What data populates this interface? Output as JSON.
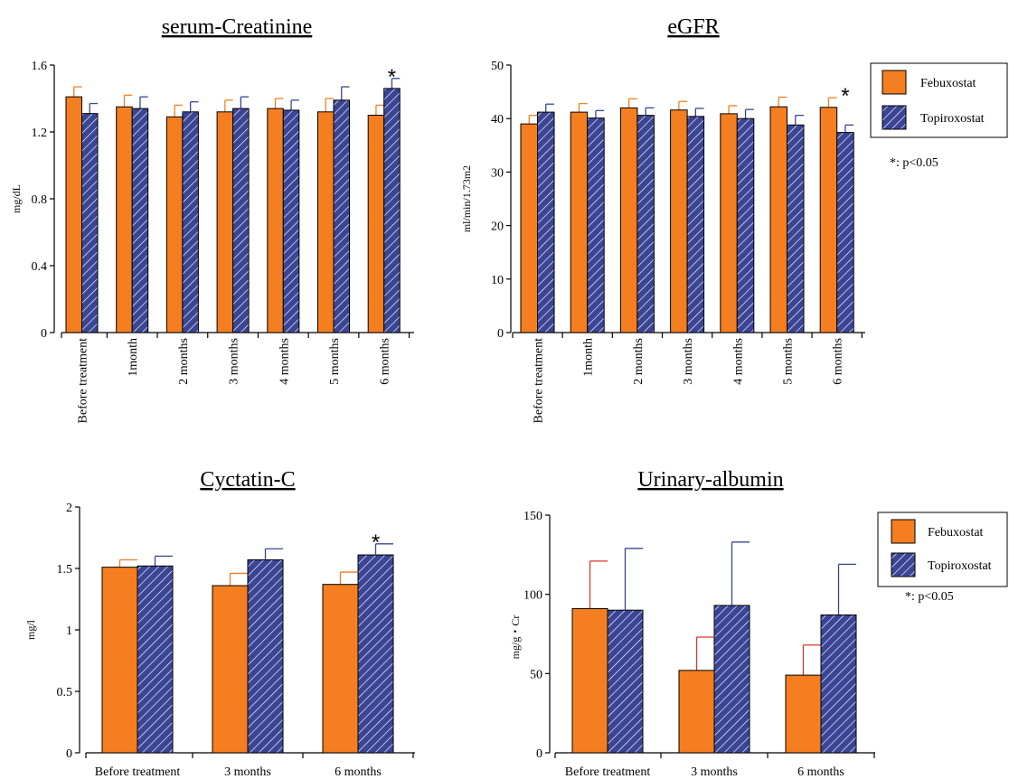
{
  "colors": {
    "febuxostat": "#F47E20",
    "topiroxostat": "#3A4595",
    "hatch": "#ffffff",
    "err_febuxostat_top": "#F47E20",
    "err_febuxostat_bottom": "#D9362B",
    "err_topiroxostat": "#3A4595"
  },
  "legend_top": {
    "items": [
      "Febuxostat",
      "Topiroxostat"
    ],
    "note": "*: p<0.05"
  },
  "legend_bottom": {
    "items": [
      "Febuxostat",
      "Topiroxostat"
    ],
    "note": "*: p<0.05"
  },
  "chart_data": [
    {
      "type": "bar",
      "title": "serum-Creatinine",
      "ylabel": "mg/dL",
      "ylim": [
        0,
        1.6
      ],
      "yticks": [
        "0",
        "0.4",
        "0.8",
        "1.2",
        "1.6"
      ],
      "categories": [
        "Before treatment",
        "1month",
        "2 months",
        "3 months",
        "4 months",
        "5 months",
        "6 months"
      ],
      "series": [
        {
          "name": "Febuxostat",
          "values": [
            1.41,
            1.35,
            1.29,
            1.32,
            1.34,
            1.32,
            1.3
          ],
          "errors": [
            0.06,
            0.07,
            0.07,
            0.07,
            0.06,
            0.08,
            0.06
          ]
        },
        {
          "name": "Topiroxostat",
          "values": [
            1.31,
            1.34,
            1.32,
            1.34,
            1.33,
            1.39,
            1.46
          ],
          "errors": [
            0.06,
            0.07,
            0.06,
            0.07,
            0.06,
            0.08,
            0.06
          ]
        }
      ],
      "annotations": [
        {
          "text": "*",
          "category": "6 months"
        }
      ],
      "rotated_labels": true
    },
    {
      "type": "bar",
      "title": "eGFR",
      "ylabel": "ml/min/1.73m2",
      "ylim": [
        0,
        50
      ],
      "yticks": [
        "0",
        "10",
        "20",
        "30",
        "40",
        "50"
      ],
      "categories": [
        "Before treatment",
        "1month",
        "2 months",
        "3 months",
        "4 months",
        "5 months",
        "6 months"
      ],
      "series": [
        {
          "name": "Febuxostat",
          "values": [
            39.0,
            41.2,
            42.0,
            41.6,
            40.9,
            42.2,
            42.1
          ],
          "errors": [
            1.6,
            1.6,
            1.7,
            1.6,
            1.5,
            1.8,
            1.8
          ]
        },
        {
          "name": "Topiroxostat",
          "values": [
            41.2,
            40.1,
            40.6,
            40.4,
            40.0,
            38.8,
            37.4
          ],
          "errors": [
            1.5,
            1.4,
            1.4,
            1.5,
            1.7,
            1.8,
            1.4
          ]
        }
      ],
      "annotations": [
        {
          "text": "*",
          "category": "6 months"
        }
      ],
      "rotated_labels": true
    },
    {
      "type": "bar",
      "title": "Cyctatin-C",
      "ylabel": "mg/l",
      "ylim": [
        0,
        2
      ],
      "yticks": [
        "0",
        "0.5",
        "1",
        "1.5",
        "2"
      ],
      "categories": [
        "Before treatment",
        "3 months",
        "6 months"
      ],
      "series": [
        {
          "name": "Febuxostat",
          "values": [
            1.51,
            1.36,
            1.37
          ],
          "errors": [
            0.06,
            0.1,
            0.1
          ]
        },
        {
          "name": "Topiroxostat",
          "values": [
            1.52,
            1.57,
            1.61
          ],
          "errors": [
            0.08,
            0.09,
            0.09
          ]
        }
      ],
      "annotations": [
        {
          "text": "*",
          "category": "6 months"
        }
      ],
      "rotated_labels": false
    },
    {
      "type": "bar",
      "title": "Urinary-albumin",
      "ylabel": "mg/g・Cr",
      "ylim": [
        0,
        150
      ],
      "yticks": [
        "0",
        "50",
        "100",
        "150"
      ],
      "categories": [
        "Before treatment",
        "3 months",
        "6 months"
      ],
      "series": [
        {
          "name": "Febuxostat",
          "values": [
            91,
            52,
            49
          ],
          "errors": [
            30,
            21,
            19
          ]
        },
        {
          "name": "Topiroxostat",
          "values": [
            90,
            93,
            87
          ],
          "errors": [
            39,
            40,
            32
          ]
        }
      ],
      "annotations": [],
      "rotated_labels": false
    }
  ]
}
